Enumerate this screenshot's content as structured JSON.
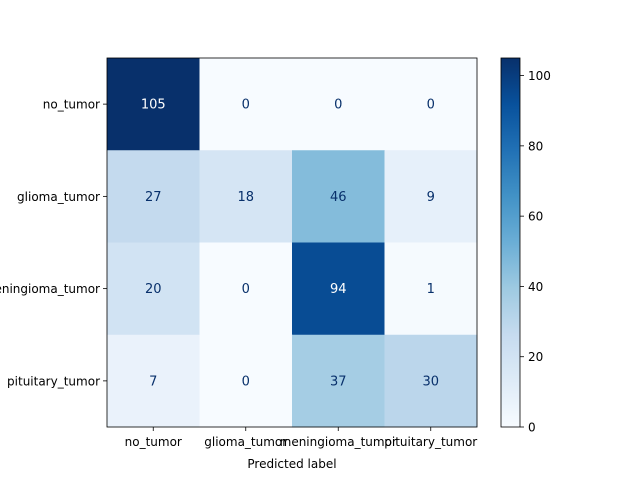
{
  "chart_data": {
    "type": "heatmap",
    "title": "",
    "xlabel": "Predicted label",
    "ylabel": "",
    "x_categories": [
      "no_tumor",
      "glioma_tumor",
      "meningioma_tumor",
      "pituitary_tumor"
    ],
    "y_categories": [
      "no_tumor",
      "glioma_tumor",
      "meningioma_tumor",
      "pituitary_tumor"
    ],
    "values": [
      [
        105,
        0,
        0,
        0
      ],
      [
        27,
        18,
        46,
        9
      ],
      [
        20,
        0,
        94,
        1
      ],
      [
        7,
        0,
        37,
        30
      ]
    ],
    "colormap": "Blues",
    "colorbar": {
      "min": 0,
      "max": 105,
      "ticks": [
        0,
        20,
        40,
        60,
        80,
        100
      ]
    },
    "text_colors": {
      "light_cell": "#08306b",
      "dark_cell": "#ffffff"
    }
  }
}
